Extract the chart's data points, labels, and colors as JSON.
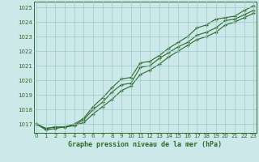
{
  "x": [
    0,
    1,
    2,
    3,
    4,
    5,
    6,
    7,
    8,
    9,
    10,
    11,
    12,
    13,
    14,
    15,
    16,
    17,
    18,
    19,
    20,
    21,
    22,
    23
  ],
  "line1": [
    1017.0,
    1016.7,
    1016.8,
    1016.8,
    1017.0,
    1017.4,
    1018.2,
    1018.8,
    1019.5,
    1020.1,
    1020.2,
    1021.2,
    1021.3,
    1021.7,
    1022.2,
    1022.6,
    1023.0,
    1023.6,
    1023.8,
    1024.2,
    1024.3,
    1024.4,
    1024.8,
    1025.1
  ],
  "line2": [
    1017.0,
    1016.7,
    1016.8,
    1016.8,
    1016.9,
    1017.3,
    1018.0,
    1018.5,
    1019.2,
    1019.7,
    1019.8,
    1020.9,
    1021.0,
    1021.5,
    1021.9,
    1022.3,
    1022.6,
    1023.1,
    1023.3,
    1023.6,
    1024.1,
    1024.2,
    1024.5,
    1024.8
  ],
  "line3": [
    1017.0,
    1016.6,
    1016.7,
    1016.8,
    1016.9,
    1017.1,
    1017.7,
    1018.2,
    1018.7,
    1019.3,
    1019.6,
    1020.4,
    1020.7,
    1021.1,
    1021.6,
    1022.0,
    1022.4,
    1022.8,
    1023.0,
    1023.3,
    1023.8,
    1024.0,
    1024.3,
    1024.6
  ],
  "line_color": "#2d6a2d",
  "bg_color": "#cce8e8",
  "grid_color": "#99cccc",
  "title": "Graphe pression niveau de la mer (hPa)",
  "ylabel_vals": [
    1017,
    1018,
    1019,
    1020,
    1021,
    1022,
    1023,
    1024,
    1025
  ],
  "ylim": [
    1016.4,
    1025.4
  ],
  "xlim": [
    -0.3,
    23.3
  ],
  "marker": "+"
}
